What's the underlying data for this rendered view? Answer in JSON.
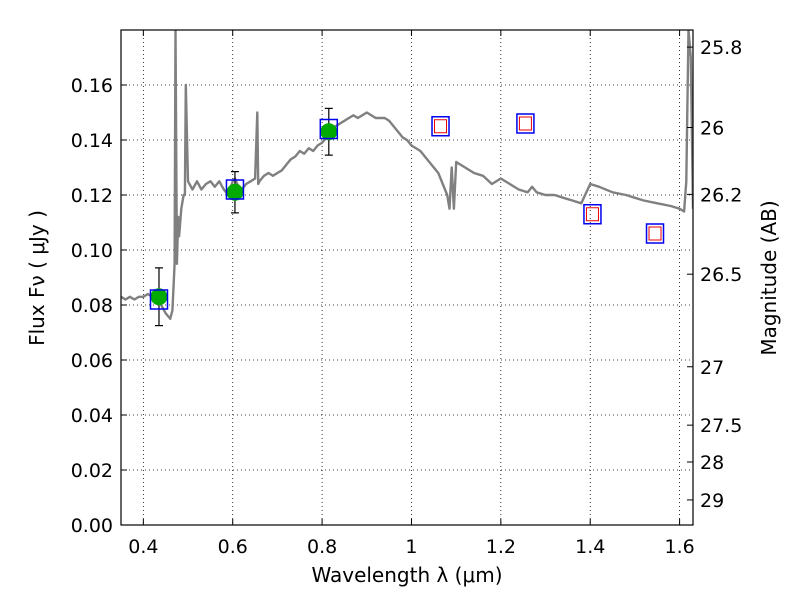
{
  "chart_data": {
    "type": "scatter",
    "xlabel": "Wavelength  λ (μm)",
    "ylabel": "Flux  Fν  ( μJy )",
    "y2label": "Magnitude (AB)",
    "xlim": [
      0.35,
      1.63
    ],
    "ylim": [
      0.0,
      0.18
    ],
    "grid": true,
    "x_ticks": [
      0.4,
      0.6,
      0.8,
      1.0,
      1.2,
      1.4,
      1.6
    ],
    "x_tick_labels": [
      "0.4",
      "0.6",
      "0.8",
      "1",
      "1.2",
      "1.4",
      "1.6"
    ],
    "y_ticks": [
      0.0,
      0.02,
      0.04,
      0.06,
      0.08,
      0.1,
      0.12,
      0.14,
      0.16
    ],
    "y_tick_labels": [
      "0.00",
      "0.02",
      "0.04",
      "0.06",
      "0.08",
      "0.10",
      "0.12",
      "0.14",
      "0.16"
    ],
    "mag_ticks": [
      25.8,
      26,
      26.2,
      26.5,
      27,
      27.5,
      28,
      29
    ],
    "mag_tick_labels": [
      "25.8",
      "26",
      "26.2",
      "26.5",
      "27",
      "27.5",
      "28",
      "29"
    ],
    "colors": {
      "spectrum": "#808080",
      "detection_fill": "#00aa00",
      "model_box": "#0000ee",
      "upper_limit_inner": "#ee0000",
      "errorbar": "#000000"
    },
    "series": [
      {
        "kind": "template_spectrum",
        "x": [
          0.35,
          0.36,
          0.37,
          0.38,
          0.39,
          0.4,
          0.41,
          0.42,
          0.43,
          0.44,
          0.45,
          0.455,
          0.46,
          0.465,
          0.47,
          0.472,
          0.475,
          0.478,
          0.48,
          0.485,
          0.49,
          0.493,
          0.495,
          0.5,
          0.51,
          0.52,
          0.53,
          0.54,
          0.55,
          0.56,
          0.57,
          0.58,
          0.59,
          0.6,
          0.605,
          0.61,
          0.615,
          0.62,
          0.63,
          0.64,
          0.65,
          0.655,
          0.657,
          0.66,
          0.67,
          0.68,
          0.69,
          0.7,
          0.71,
          0.72,
          0.73,
          0.74,
          0.75,
          0.76,
          0.77,
          0.78,
          0.79,
          0.8,
          0.81,
          0.82,
          0.83,
          0.84,
          0.85,
          0.86,
          0.87,
          0.88,
          0.89,
          0.9,
          0.92,
          0.94,
          0.95,
          0.96,
          0.97,
          0.98,
          0.99,
          1.0,
          1.02,
          1.04,
          1.06,
          1.08,
          1.085,
          1.09,
          1.095,
          1.1,
          1.12,
          1.14,
          1.16,
          1.18,
          1.2,
          1.22,
          1.24,
          1.26,
          1.27,
          1.28,
          1.3,
          1.32,
          1.34,
          1.36,
          1.38,
          1.4,
          1.42,
          1.45,
          1.48,
          1.5,
          1.52,
          1.55,
          1.58,
          1.6,
          1.61,
          1.615,
          1.62,
          1.625,
          1.63
        ],
        "y": [
          0.083,
          0.082,
          0.083,
          0.082,
          0.083,
          0.083,
          0.084,
          0.083,
          0.082,
          0.08,
          0.077,
          0.076,
          0.075,
          0.078,
          0.095,
          0.18,
          0.095,
          0.112,
          0.105,
          0.115,
          0.12,
          0.12,
          0.16,
          0.125,
          0.122,
          0.125,
          0.122,
          0.124,
          0.125,
          0.123,
          0.125,
          0.122,
          0.12,
          0.125,
          0.126,
          0.124,
          0.123,
          0.122,
          0.124,
          0.125,
          0.126,
          0.15,
          0.124,
          0.125,
          0.127,
          0.128,
          0.127,
          0.128,
          0.129,
          0.131,
          0.133,
          0.134,
          0.136,
          0.135,
          0.137,
          0.136,
          0.138,
          0.139,
          0.141,
          0.143,
          0.145,
          0.146,
          0.147,
          0.148,
          0.149,
          0.148,
          0.149,
          0.15,
          0.148,
          0.148,
          0.147,
          0.145,
          0.143,
          0.141,
          0.14,
          0.138,
          0.136,
          0.132,
          0.128,
          0.12,
          0.115,
          0.13,
          0.115,
          0.132,
          0.13,
          0.128,
          0.127,
          0.124,
          0.126,
          0.124,
          0.122,
          0.121,
          0.123,
          0.121,
          0.12,
          0.12,
          0.119,
          0.118,
          0.117,
          0.124,
          0.123,
          0.121,
          0.12,
          0.119,
          0.118,
          0.117,
          0.116,
          0.115,
          0.114,
          0.125,
          0.18,
          0.17,
          0.115
        ]
      },
      {
        "kind": "detections",
        "x": [
          0.435,
          0.605,
          0.815
        ],
        "y": [
          0.083,
          0.121,
          0.143
        ],
        "yerr": [
          0.0105,
          0.0075,
          0.0085
        ]
      },
      {
        "kind": "model_photometry",
        "x": [
          0.435,
          0.605,
          0.815,
          1.065,
          1.255,
          1.405,
          1.545
        ],
        "y": [
          0.082,
          0.122,
          0.144,
          0.145,
          0.146,
          0.113,
          0.106
        ]
      },
      {
        "kind": "upper_limits",
        "x": [
          1.065,
          1.255,
          1.405,
          1.545
        ],
        "y": [
          0.145,
          0.146,
          0.113,
          0.106
        ]
      }
    ]
  }
}
